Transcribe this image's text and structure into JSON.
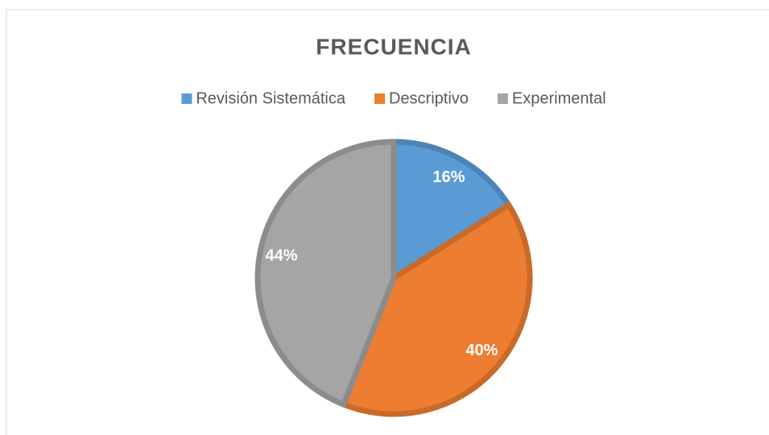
{
  "chart_data": {
    "type": "pie",
    "title": "FRECUENCIA",
    "categories": [
      "Revisión Sistemática",
      "Descriptivo",
      "Experimental"
    ],
    "values": [
      16,
      40,
      44
    ],
    "value_labels": [
      "16%",
      "40%",
      "44%"
    ],
    "colors": [
      "#5b9bd5",
      "#ed7d31",
      "#a5a5a5"
    ],
    "legend": "top"
  }
}
